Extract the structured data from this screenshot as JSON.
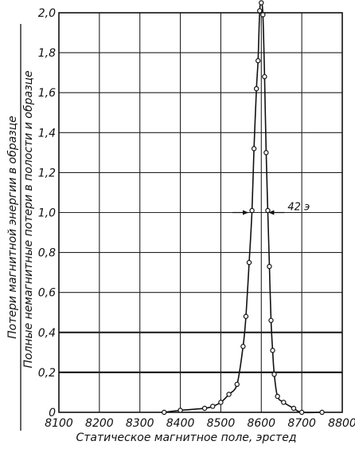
{
  "chart_data": {
    "type": "line",
    "title": "",
    "xlabel": "Статическое магнитное поле, эрстед",
    "ylabel_numerator": "Потери магнитной энергии в образце",
    "ylabel_denominator": "Полные немагнитные потери в полости и образце",
    "xlim": [
      8100,
      8800
    ],
    "ylim": [
      0,
      2.0
    ],
    "x_tick_labels": [
      "8100",
      "8200",
      "8300",
      "8400",
      "8500",
      "8600",
      "8700",
      "8800"
    ],
    "y_tick_labels": [
      "0",
      "0,2",
      "0,4",
      "0,6",
      "0,8",
      "1,0",
      "1,2",
      "1,4",
      "1,6",
      "1,8",
      "2,0"
    ],
    "grid": true,
    "annotation": {
      "text": "42 э",
      "x_left": 8572,
      "x_right": 8614,
      "y": 1.0
    },
    "series": [
      {
        "x": [
          8360,
          8400,
          8460,
          8480,
          8500,
          8520,
          8540,
          8555,
          8562,
          8570,
          8577,
          8582,
          8588,
          8592,
          8596,
          8600,
          8604,
          8608,
          8612,
          8616,
          8620,
          8624,
          8628,
          8632,
          8640,
          8655,
          8680,
          8700,
          8750
        ],
        "y": [
          0.0,
          0.01,
          0.02,
          0.03,
          0.05,
          0.09,
          0.14,
          0.33,
          0.48,
          0.75,
          1.01,
          1.32,
          1.62,
          1.76,
          2.01,
          2.05,
          1.99,
          1.68,
          1.3,
          1.01,
          0.73,
          0.46,
          0.31,
          0.19,
          0.08,
          0.05,
          0.02,
          0.0,
          0.0
        ]
      }
    ]
  }
}
